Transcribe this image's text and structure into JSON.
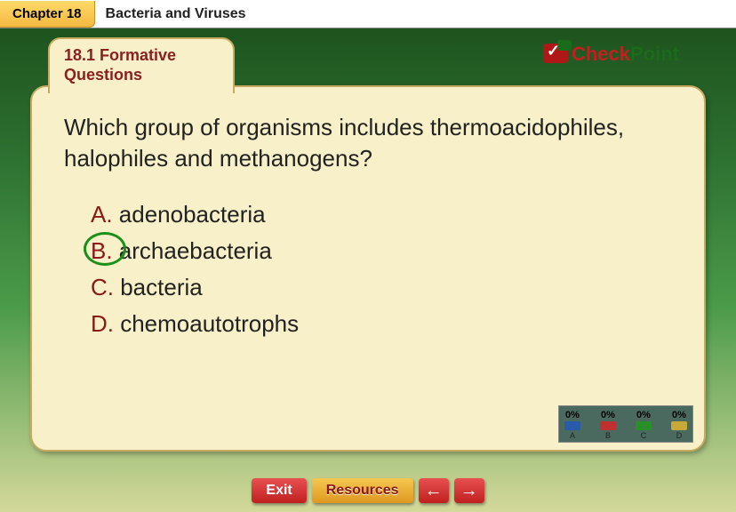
{
  "header": {
    "chapter_label": "Chapter 18",
    "chapter_title": "Bacteria and Viruses"
  },
  "section_tab": {
    "line1": "18.1 Formative",
    "line2": "Questions"
  },
  "logo": {
    "check_text": "Check",
    "point_text": "Point"
  },
  "question": {
    "text": "Which group of organisms includes thermoacidophiles, halophiles and methanogens?"
  },
  "answers": [
    {
      "letter": "A.",
      "text": " adenobacteria",
      "correct": false
    },
    {
      "letter": "B.",
      "text": " archaebacteria",
      "correct": true
    },
    {
      "letter": "C.",
      "text": " bacteria",
      "correct": false
    },
    {
      "letter": "D.",
      "text": " chemoautotrophs",
      "correct": false
    }
  ],
  "poll": {
    "items": [
      {
        "pct": "0%",
        "color": "#2a5aaa",
        "label": "A"
      },
      {
        "pct": "0%",
        "color": "#c03030",
        "label": "B"
      },
      {
        "pct": "0%",
        "color": "#2a8f2a",
        "label": "C"
      },
      {
        "pct": "0%",
        "color": "#c8a838",
        "label": "D"
      }
    ]
  },
  "buttons": {
    "exit": "Exit",
    "resources": "Resources",
    "prev": "←",
    "next": "→"
  },
  "colors": {
    "brand_red": "#8b1818",
    "brand_green": "#1a6b1a",
    "card_bg": "#f7f0c8",
    "card_border": "#c9a95f"
  }
}
